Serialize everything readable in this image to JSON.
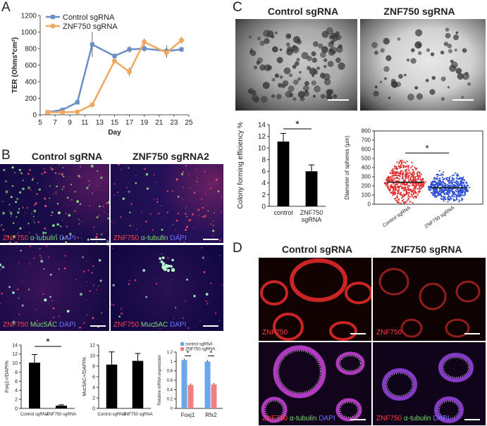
{
  "panels": {
    "a": "A",
    "b": "B",
    "c": "C",
    "d": "D"
  },
  "panelA": {
    "chart_data": {
      "type": "line",
      "xlabel": "Day",
      "ylabel": "TER (Ohms*cm²)",
      "xlim": [
        5,
        25
      ],
      "ylim": [
        0,
        1200
      ],
      "xticks": [
        5,
        7,
        9,
        11,
        13,
        15,
        17,
        19,
        21,
        23,
        25
      ],
      "yticks": [
        0,
        200,
        400,
        600,
        800,
        1000,
        1200
      ],
      "legend_position": "top-left",
      "series": [
        {
          "name": "Control sgRNA",
          "color": "#6a8fc7",
          "x": [
            6,
            8,
            10,
            12,
            15,
            17,
            19,
            22,
            24
          ],
          "y": [
            30,
            60,
            150,
            850,
            710,
            790,
            800,
            770,
            790
          ],
          "err": [
            10,
            15,
            20,
            150,
            30,
            40,
            40,
            70,
            30
          ]
        },
        {
          "name": "ZNF750 sgRNA",
          "color": "#f0a860",
          "x": [
            6,
            8,
            10,
            12,
            15,
            17,
            19,
            22,
            24
          ],
          "y": [
            30,
            30,
            35,
            120,
            650,
            520,
            880,
            750,
            900
          ],
          "err": [
            5,
            5,
            10,
            20,
            30,
            50,
            40,
            60,
            40
          ]
        }
      ]
    }
  },
  "panelB": {
    "control_header": "Control sgRNA",
    "znf_header": "ZNF750 sgRNA2",
    "cap_top": {
      "red": "ZNF750",
      "green": "α-tubulin",
      "blue": "DAPI"
    },
    "cap_bottom": {
      "red": "ZNF750",
      "green": "Muc5AC",
      "blue": "DAPI"
    },
    "chart1": {
      "type": "bar",
      "ylabel": "Foxj1+/DAPI%",
      "categories": [
        "Control sgRNA",
        "ZNF750 sgRNA"
      ],
      "values": [
        10.1,
        0.6
      ],
      "err": [
        1.8,
        0.2
      ],
      "ylim": [
        0,
        14
      ],
      "yticks": [
        0,
        2,
        4,
        6,
        8,
        10,
        12,
        14
      ],
      "sig": "*"
    },
    "chart2": {
      "type": "bar",
      "ylabel": "Muc5AC+/DAPI%",
      "categories": [
        "Control sgRNA",
        "ZNF750 sgRNA"
      ],
      "values": [
        8.3,
        9.0
      ],
      "err": [
        2.4,
        1.4
      ],
      "ylim": [
        0,
        12
      ],
      "yticks": [
        0,
        2,
        4,
        6,
        8,
        10,
        12
      ]
    },
    "chart3": {
      "type": "bar",
      "ylabel": "Relative mRNA expression",
      "categories": [
        "Foxj1",
        "Rfx2"
      ],
      "series": [
        {
          "name": "control sgRNA",
          "color": "#6aa6e8",
          "values": [
            1.03,
            1.0
          ]
        },
        {
          "name": "ZNF750 sgRNA",
          "color": "#f08080",
          "values": [
            0.5,
            0.51
          ]
        }
      ],
      "ylim": [
        0,
        1.2
      ],
      "yticks": [
        0,
        0.2,
        0.4,
        0.6,
        0.8,
        1,
        1.2
      ],
      "sig": "*"
    }
  },
  "panelC": {
    "control_header": "Control sgRNA",
    "znf_header": "ZNF750 sgRNA",
    "chart1": {
      "type": "bar",
      "ylabel": "Colony forming efficiency %",
      "categories": [
        "control",
        "ZNF750 sgRNA"
      ],
      "values": [
        11.1,
        6.0
      ],
      "err": [
        1.4,
        1.1
      ],
      "ylim": [
        0,
        14
      ],
      "yticks": [
        0,
        2,
        4,
        6,
        8,
        10,
        12,
        14
      ],
      "sig": "*"
    },
    "chart2": {
      "type": "scatter",
      "ylabel": "Diameter of spheres (µm)",
      "categories": [
        "Control sgRNA",
        "ZNF750 sgRNA"
      ],
      "colors": [
        "#e03030",
        "#3050d0"
      ],
      "ylim": [
        0,
        800
      ],
      "yticks": [
        0,
        100,
        200,
        300,
        400,
        500,
        600,
        700,
        800
      ],
      "medians": [
        240,
        180
      ],
      "sig": "*"
    }
  },
  "panelD": {
    "control_header": "Control sgRNA",
    "znf_header": "ZNF750 sgRNA",
    "cap_top": {
      "red": "ZNF750"
    },
    "cap_bottom": {
      "red": "ZNF750",
      "green": "α-tubulin",
      "blue": "DAPI"
    }
  }
}
